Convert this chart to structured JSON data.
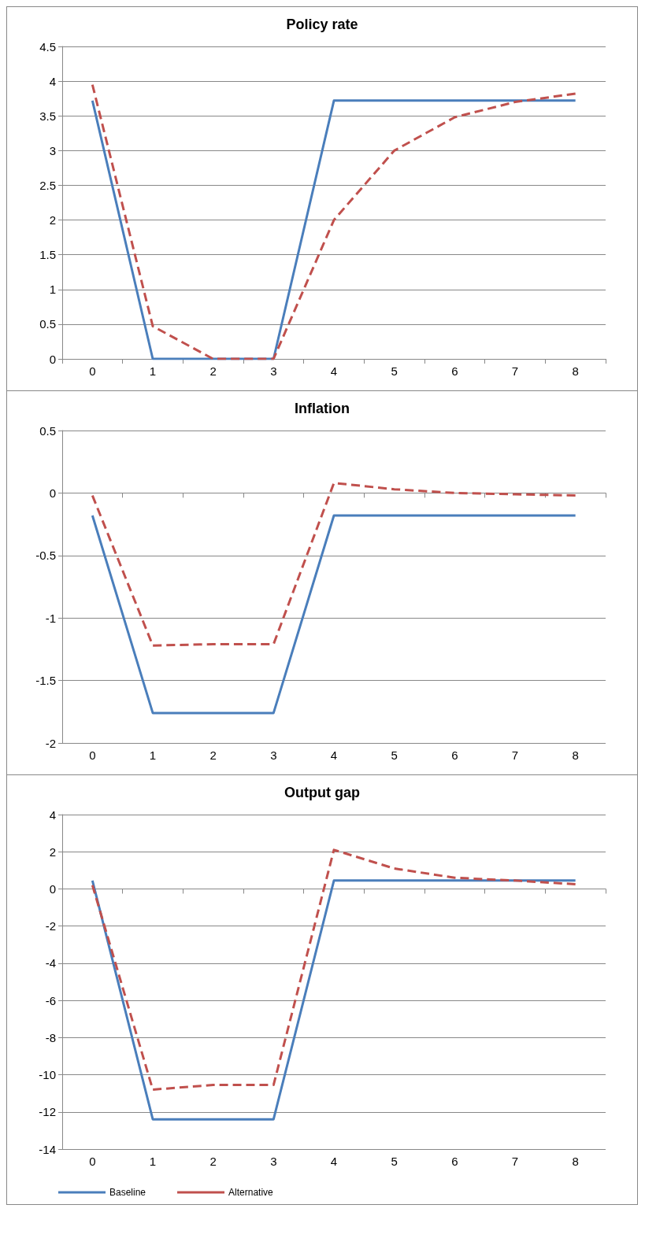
{
  "chart_data": [
    {
      "type": "line",
      "title": "Policy rate",
      "categories": [
        "0",
        "1",
        "2",
        "3",
        "4",
        "5",
        "6",
        "7",
        "8"
      ],
      "ylim": [
        0,
        4.5
      ],
      "yticks": [
        0,
        0.5,
        1,
        1.5,
        2,
        2.5,
        3,
        3.5,
        4,
        4.5
      ],
      "grid": "y",
      "legend": false,
      "marker": "none",
      "series": [
        {
          "color": "#4a7ebb",
          "line_style": "solid",
          "values": [
            3.72,
            0,
            0,
            0,
            3.72,
            3.72,
            3.72,
            3.72,
            3.72
          ]
        },
        {
          "color": "#c0504d",
          "line_style": "dashed",
          "values": [
            3.95,
            0.47,
            0,
            0,
            2.0,
            3.0,
            3.48,
            3.7,
            3.82
          ]
        }
      ]
    },
    {
      "type": "line",
      "title": "Inflation",
      "categories": [
        "0",
        "1",
        "2",
        "3",
        "4",
        "5",
        "6",
        "7",
        "8"
      ],
      "ylim": [
        -2,
        0.5
      ],
      "yticks": [
        -2,
        -1.5,
        -1,
        -0.5,
        0,
        0.5
      ],
      "grid": "y",
      "legend": false,
      "marker": "none",
      "series": [
        {
          "color": "#4a7ebb",
          "line_style": "solid",
          "values": [
            -0.18,
            -1.76,
            -1.76,
            -1.76,
            -0.18,
            -0.18,
            -0.18,
            -0.18,
            -0.18
          ]
        },
        {
          "color": "#c0504d",
          "line_style": "dashed",
          "values": [
            -0.02,
            -1.22,
            -1.21,
            -1.21,
            0.08,
            0.03,
            0.0,
            -0.01,
            -0.02
          ]
        }
      ]
    },
    {
      "type": "line",
      "title": "Output gap",
      "categories": [
        "0",
        "1",
        "2",
        "3",
        "4",
        "5",
        "6",
        "7",
        "8"
      ],
      "ylim": [
        -14,
        4
      ],
      "yticks": [
        -14,
        -12,
        -10,
        -8,
        -6,
        -4,
        -2,
        0,
        2,
        4
      ],
      "grid": "y",
      "legend": "bottom left",
      "marker": "none",
      "series": [
        {
          "name": "Baseline",
          "color": "#4a7ebb",
          "line_style": "solid",
          "values": [
            0.45,
            -12.4,
            -12.4,
            -12.4,
            0.45,
            0.45,
            0.45,
            0.45,
            0.45
          ]
        },
        {
          "name": "Alternative",
          "color": "#c0504d",
          "line_style": "dashed",
          "values": [
            0.2,
            -10.8,
            -10.55,
            -10.55,
            2.1,
            1.1,
            0.6,
            0.45,
            0.25
          ]
        }
      ]
    }
  ]
}
